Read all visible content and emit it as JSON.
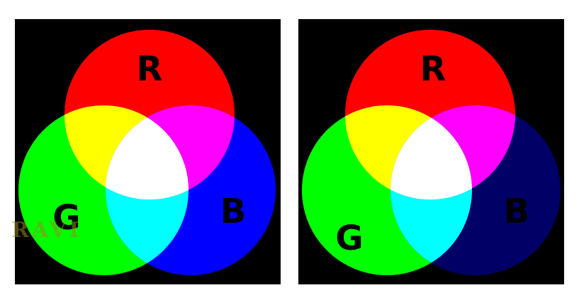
{
  "panels": [
    {
      "id": "left",
      "circles": {
        "red": {
          "label": "R",
          "color": "#ff0000"
        },
        "green": {
          "label": "G",
          "color": "#00ff00"
        },
        "blue": {
          "label": "B",
          "color": "#0000ff"
        }
      },
      "overlaps": {
        "red_green": "#ffff00",
        "red_blue": "#ff00ff",
        "green_blue": "#00ffff",
        "all": "#ffffff"
      }
    },
    {
      "id": "right",
      "circles": {
        "red": {
          "label": "R",
          "color": "#ff0000"
        },
        "green": {
          "label": "G",
          "color": "#00ff00"
        },
        "blue": {
          "label": "B",
          "color": "#000066"
        }
      },
      "overlaps": {
        "red_green": "#ffff00",
        "red_blue": "#ff00ff",
        "green_blue": "#00ffff",
        "all": "#ffffff"
      }
    }
  ],
  "watermark": "RAVI",
  "colors": {
    "panel_background": "#000000",
    "page_background": "#ffffff",
    "label_color": "#000000"
  }
}
